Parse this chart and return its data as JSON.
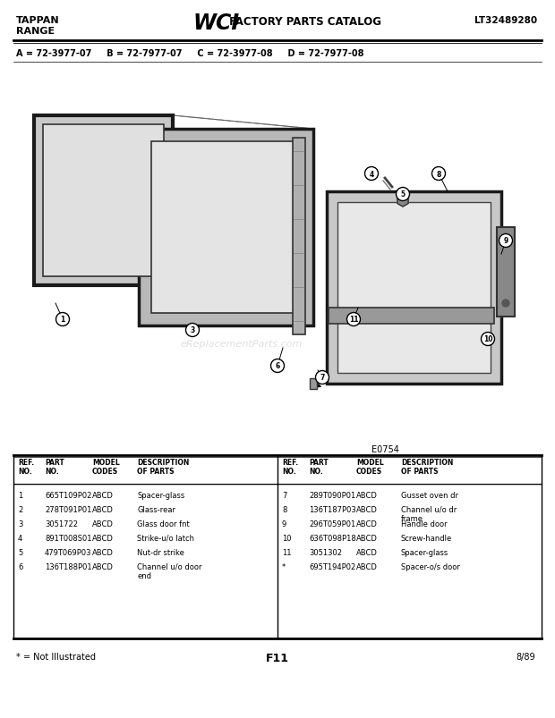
{
  "title_left1": "TAPPAN",
  "title_left2": "RANGE",
  "title_center1": "WCI",
  "title_center2": " FACTORY PARTS CATALOG",
  "title_right": "LT32489280",
  "model_codes": "A = 72-3977-07     B = 72-7977-07     C = 72-3977-08     D = 72-7977-08",
  "diagram_label": "E0754",
  "page_label": "F11",
  "date_label": "8/89",
  "footnote": "* = Not Illustrated",
  "parts_left": [
    [
      "1",
      "665T109P02",
      "ABCD",
      "Spacer-glass"
    ],
    [
      "2",
      "278T091P01",
      "ABCD",
      "Glass-rear"
    ],
    [
      "3",
      "3051722",
      "ABCD",
      "Glass door fnt"
    ],
    [
      "4",
      "891T008S01",
      "ABCD",
      "Strike-u/o latch"
    ],
    [
      "5",
      "479T069P03",
      "ABCD",
      "Nut-dr strike"
    ],
    [
      "6",
      "136T188P01",
      "ABCD",
      "Channel u/o door\nend"
    ]
  ],
  "parts_right": [
    [
      "7",
      "289T090P01",
      "ABCD",
      "Gusset oven dr"
    ],
    [
      "8",
      "136T187P03",
      "ABCD",
      "Channel u/o dr\nframe"
    ],
    [
      "9",
      "296T059P01",
      "ABCD",
      "Handle door"
    ],
    [
      "10",
      "636T098P18",
      "ABCD",
      "Screw-handle"
    ],
    [
      "11",
      "3051302",
      "ABCD",
      "Spacer-glass"
    ],
    [
      "*",
      "695T194P02",
      "ABCD",
      "Spacer-o/s door"
    ]
  ],
  "bg_color": "#ffffff"
}
